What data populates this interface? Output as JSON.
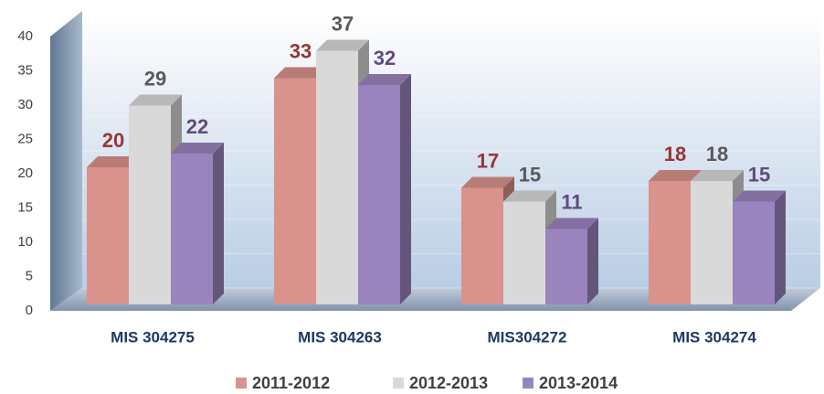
{
  "chart_data": {
    "type": "bar",
    "categories": [
      "MIS 304275",
      "MIS 304263",
      "MIS304272",
      "MIS 304274"
    ],
    "series": [
      {
        "name": "2011-2012",
        "color": "#d9928c",
        "label_color": "#953735",
        "values": [
          20,
          33,
          17,
          18
        ]
      },
      {
        "name": "2012-2013",
        "color": "#d9d9d9",
        "label_color": "#595959",
        "values": [
          29,
          37,
          15,
          18
        ]
      },
      {
        "name": "2013-2014",
        "color": "#9a84bd",
        "label_color": "#604a7b",
        "values": [
          22,
          32,
          11,
          15
        ]
      }
    ],
    "ylim": [
      0,
      40
    ],
    "yticks": [
      0,
      5,
      10,
      15,
      20,
      25,
      30,
      35,
      40
    ]
  }
}
